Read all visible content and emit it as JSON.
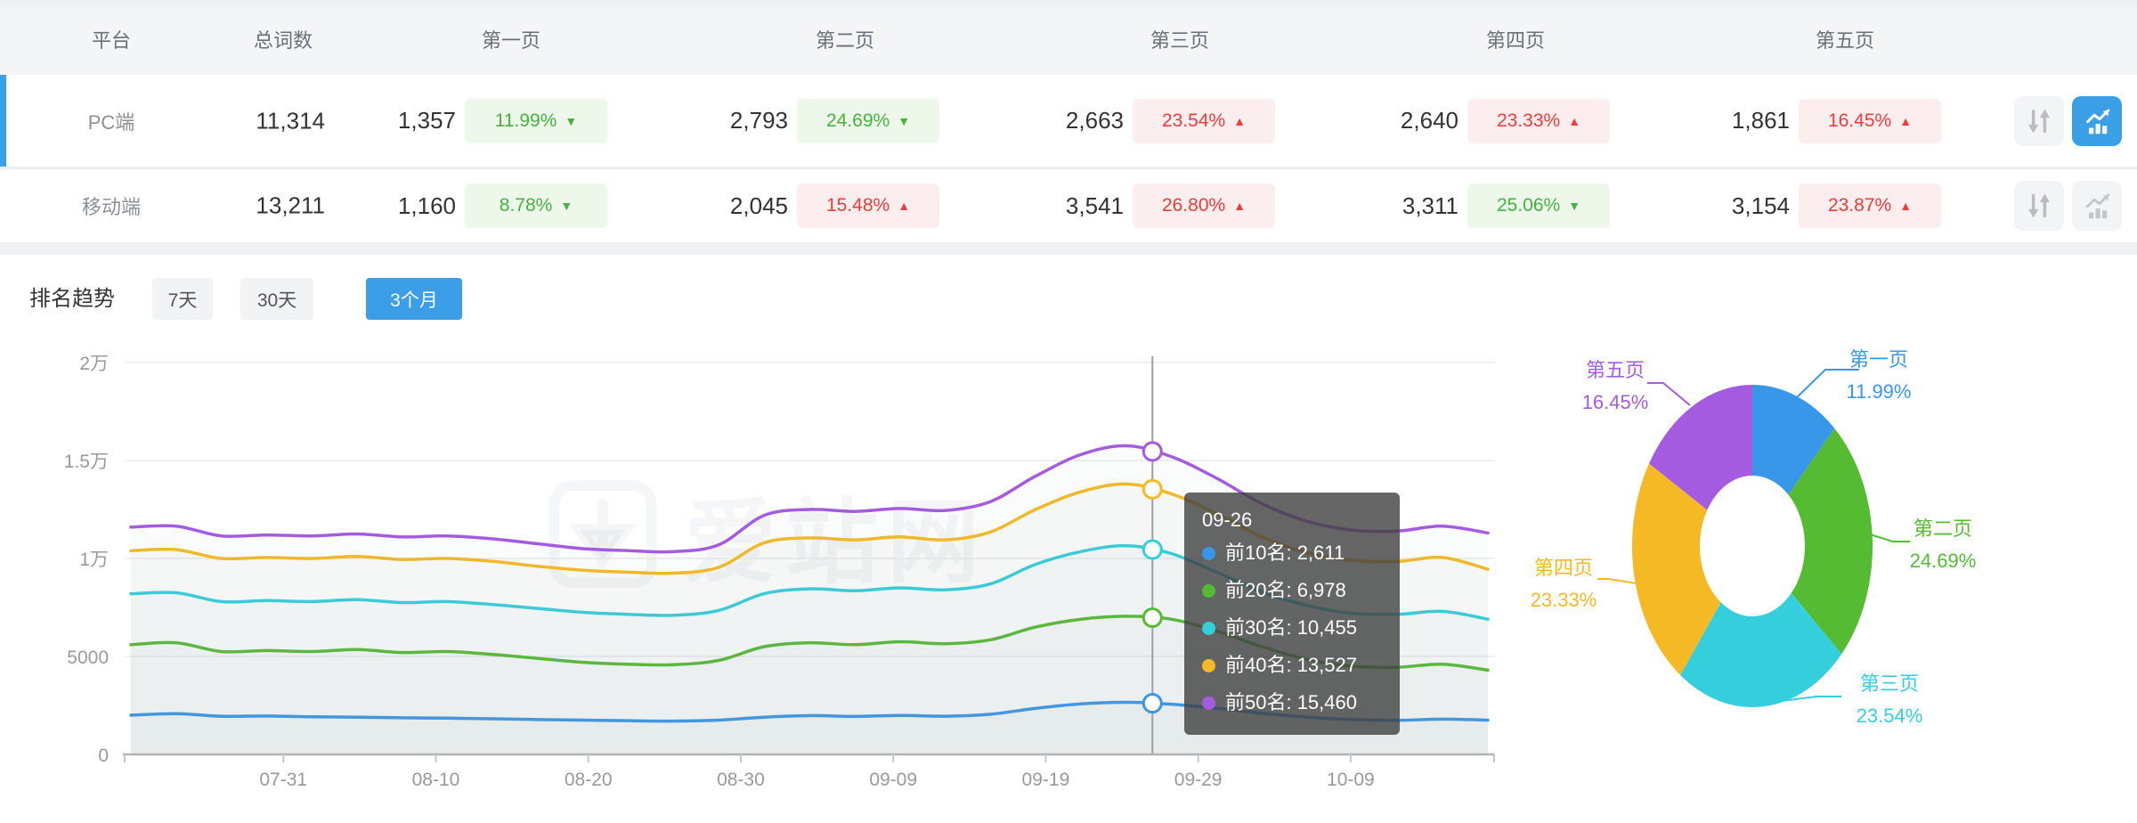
{
  "table": {
    "headers": [
      "平台",
      "总词数",
      "第一页",
      "第二页",
      "第三页",
      "第四页",
      "第五页"
    ],
    "rows": [
      {
        "platform": "PC端",
        "total": "11,314",
        "selected": true,
        "pages": [
          {
            "count": "1,357",
            "pct": "11.99%",
            "trend": "down",
            "tone": "green"
          },
          {
            "count": "2,793",
            "pct": "24.69%",
            "trend": "down",
            "tone": "green"
          },
          {
            "count": "2,663",
            "pct": "23.54%",
            "trend": "up",
            "tone": "red"
          },
          {
            "count": "2,640",
            "pct": "23.33%",
            "trend": "up",
            "tone": "red"
          },
          {
            "count": "1,861",
            "pct": "16.45%",
            "trend": "up",
            "tone": "red"
          }
        ]
      },
      {
        "platform": "移动端",
        "total": "13,211",
        "selected": false,
        "pages": [
          {
            "count": "1,160",
            "pct": "8.78%",
            "trend": "down",
            "tone": "green"
          },
          {
            "count": "2,045",
            "pct": "15.48%",
            "trend": "up",
            "tone": "red"
          },
          {
            "count": "3,541",
            "pct": "26.80%",
            "trend": "up",
            "tone": "red"
          },
          {
            "count": "3,311",
            "pct": "25.06%",
            "trend": "down",
            "tone": "green"
          },
          {
            "count": "3,154",
            "pct": "23.87%",
            "trend": "up",
            "tone": "red"
          }
        ]
      }
    ]
  },
  "trend": {
    "title": "排名趋势",
    "tabs": [
      {
        "label": "7天",
        "active": false
      },
      {
        "label": "30天",
        "active": false
      },
      {
        "label": "3个月",
        "active": true
      }
    ]
  },
  "tooltip": {
    "date": "09-26",
    "items": [
      {
        "label": "前10名",
        "value": "2,611",
        "num": 2611,
        "color": "#3897E8"
      },
      {
        "label": "前20名",
        "value": "6,978",
        "num": 6978,
        "color": "#55BB33"
      },
      {
        "label": "前30名",
        "value": "10,455",
        "num": 10455,
        "color": "#35CEDC"
      },
      {
        "label": "前40名",
        "value": "13,527",
        "num": 13527,
        "color": "#F5B926"
      },
      {
        "label": "前50名",
        "value": "15,460",
        "num": 15460,
        "color": "#A55BE0"
      }
    ]
  },
  "watermark": "爱站网",
  "colors": {
    "accent": "#3B9FE8",
    "green": "#44B340",
    "green_bg": "#EDF7EA",
    "red": "#EE3B3B",
    "red_bg": "#FCEEEE",
    "axis": "#B0B4B8",
    "grid": "#ECECEC",
    "tick_label": "#999999"
  },
  "chart_data": [
    {
      "type": "line",
      "title": "排名趋势（3个月）",
      "x_start": "07-21",
      "x_end": "10-18",
      "day_span": 89,
      "x_ticks": [
        {
          "label": "07-31",
          "day": 10
        },
        {
          "label": "08-10",
          "day": 20
        },
        {
          "label": "08-20",
          "day": 30
        },
        {
          "label": "08-30",
          "day": 40
        },
        {
          "label": "09-09",
          "day": 50
        },
        {
          "label": "09-19",
          "day": 60
        },
        {
          "label": "09-29",
          "day": 70
        },
        {
          "label": "10-09",
          "day": 80
        }
      ],
      "y_ticks": [
        {
          "label": "0",
          "value": 0
        },
        {
          "label": "5000",
          "value": 5000
        },
        {
          "label": "1万",
          "value": 10000
        },
        {
          "label": "1.5万",
          "value": 15000
        },
        {
          "label": "2万",
          "value": 20000
        }
      ],
      "ylim": [
        0,
        20000
      ],
      "grid": true,
      "legend": "none",
      "crosshair": {
        "date": "09-26",
        "day": 67
      },
      "series": [
        {
          "name": "前10名",
          "color": "#3897E8",
          "values": [
            2000,
            2080,
            1950,
            1960,
            1920,
            1900,
            1870,
            1850,
            1820,
            1780,
            1750,
            1720,
            1700,
            1750,
            1900,
            1980,
            1940,
            1990,
            1950,
            2050,
            2350,
            2580,
            2660,
            2560,
            2350,
            2100,
            1900,
            1780,
            1740,
            1800,
            1750
          ]
        },
        {
          "name": "前20名",
          "color": "#55BB33",
          "values": [
            5600,
            5700,
            5250,
            5300,
            5250,
            5350,
            5200,
            5250,
            5100,
            4900,
            4700,
            4600,
            4580,
            4800,
            5500,
            5700,
            5600,
            5750,
            5650,
            5850,
            6500,
            6900,
            7050,
            6900,
            6300,
            5500,
            4850,
            4500,
            4450,
            4600,
            4300
          ]
        },
        {
          "name": "前30名",
          "color": "#35CEDC",
          "values": [
            8200,
            8250,
            7800,
            7850,
            7800,
            7900,
            7750,
            7800,
            7650,
            7450,
            7250,
            7150,
            7100,
            7350,
            8200,
            8450,
            8350,
            8500,
            8400,
            8700,
            9700,
            10350,
            10650,
            10250,
            9300,
            8300,
            7600,
            7200,
            7150,
            7300,
            6900
          ]
        },
        {
          "name": "前40名",
          "color": "#F5B926",
          "values": [
            10400,
            10450,
            10000,
            10050,
            10000,
            10100,
            9950,
            10000,
            9850,
            9600,
            9400,
            9300,
            9250,
            9550,
            10800,
            11050,
            10950,
            11100,
            10950,
            11350,
            12500,
            13400,
            13800,
            13300,
            12300,
            11100,
            10300,
            9900,
            9850,
            10050,
            9450
          ]
        },
        {
          "name": "前50名",
          "color": "#A55BE0",
          "values": [
            11600,
            11650,
            11150,
            11200,
            11150,
            11250,
            11100,
            11150,
            11000,
            10750,
            10500,
            10400,
            10350,
            10700,
            12200,
            12500,
            12400,
            12550,
            12450,
            12900,
            14200,
            15300,
            15750,
            15200,
            14100,
            12800,
            11900,
            11450,
            11400,
            11650,
            11300
          ]
        }
      ]
    },
    {
      "type": "pie",
      "donut": true,
      "legend": "none",
      "slices": [
        {
          "label": "第一页",
          "pct": 11.99,
          "color": "#3897E8"
        },
        {
          "label": "第二页",
          "pct": 24.69,
          "color": "#55BB33"
        },
        {
          "label": "第三页",
          "pct": 23.54,
          "color": "#35CEDC"
        },
        {
          "label": "第四页",
          "pct": 23.33,
          "color": "#F5B926"
        },
        {
          "label": "第五页",
          "pct": 16.45,
          "color": "#A55BE0"
        }
      ]
    }
  ]
}
